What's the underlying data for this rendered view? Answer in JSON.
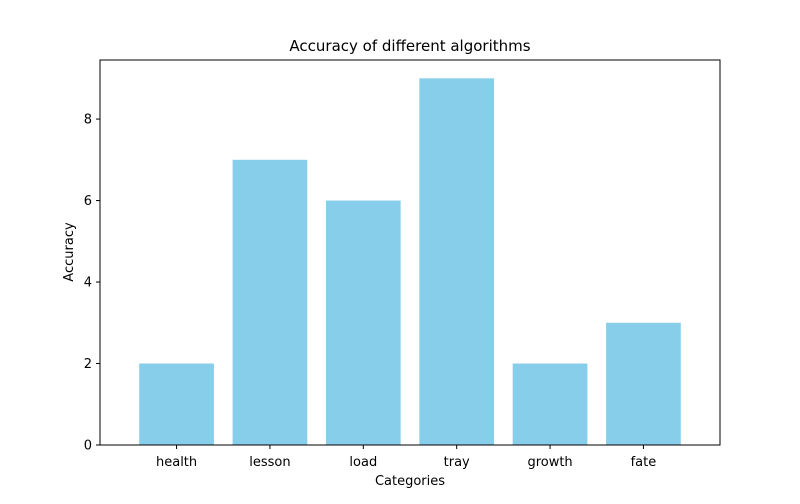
{
  "chart_data": {
    "type": "bar",
    "title": "Accuracy of different algorithms",
    "xlabel": "Categories",
    "ylabel": "Accuracy",
    "categories": [
      "health",
      "lesson",
      "load",
      "tray",
      "growth",
      "fate"
    ],
    "values": [
      2,
      7,
      6,
      9,
      2,
      3
    ],
    "ylim": [
      0,
      9.45
    ],
    "yticks": [
      0,
      2,
      4,
      6,
      8
    ],
    "grid": false,
    "bar_color": "#87ceeb",
    "axis_color": "#000000"
  }
}
